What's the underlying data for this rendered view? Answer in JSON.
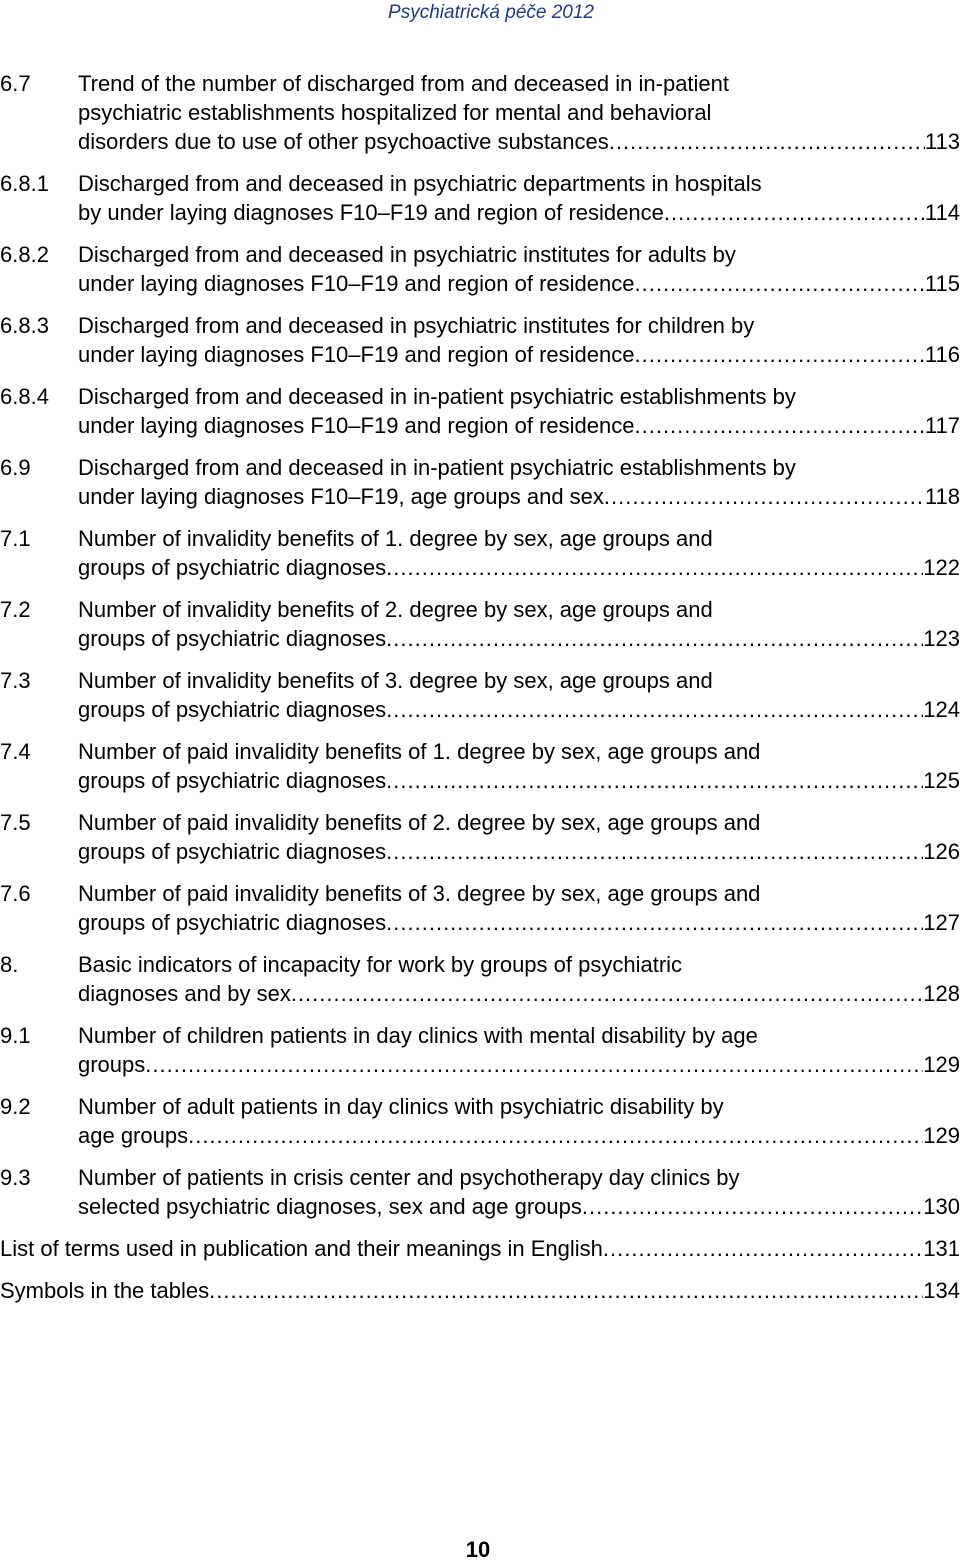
{
  "header": {
    "title": "Psychiatrická péče 2012"
  },
  "entries": [
    {
      "num": "6.7",
      "lines": [
        "Trend of the number of discharged from and deceased in in-patient",
        "psychiatric establishments hospitalized for mental and behavioral"
      ],
      "last": "disorders due to use of other psychoactive substances",
      "page": "113"
    },
    {
      "num": "6.8.1",
      "lines": [
        "Discharged from and deceased in psychiatric departments in hospitals"
      ],
      "last": "by under laying diagnoses F10–F19 and region of residence",
      "page": "114"
    },
    {
      "num": "6.8.2",
      "lines": [
        "Discharged from and deceased in psychiatric institutes for adults by"
      ],
      "last": "under laying diagnoses F10–F19 and region of residence",
      "page": "115"
    },
    {
      "num": "6.8.3",
      "lines": [
        "Discharged from and deceased in psychiatric institutes for children by"
      ],
      "last": "under laying diagnoses F10–F19 and region of residence",
      "page": "116"
    },
    {
      "num": "6.8.4",
      "lines": [
        "Discharged from and deceased in in-patient psychiatric establishments by"
      ],
      "last": "under laying diagnoses F10–F19 and region of residence",
      "page": "117"
    },
    {
      "num": "6.9",
      "lines": [
        "Discharged from and deceased in in-patient psychiatric establishments by"
      ],
      "last": "under laying diagnoses F10–F19, age groups and sex",
      "page": "118"
    },
    {
      "num": "7.1",
      "lines": [
        "Number of invalidity benefits of 1. degree by sex, age groups and"
      ],
      "last": "groups of psychiatric diagnoses",
      "page": "122"
    },
    {
      "num": "7.2",
      "lines": [
        "Number of invalidity benefits of 2. degree by sex, age groups and"
      ],
      "last": "groups of psychiatric diagnoses",
      "page": "123"
    },
    {
      "num": "7.3",
      "lines": [
        "Number of invalidity benefits of 3. degree by sex, age groups and"
      ],
      "last": "groups of psychiatric diagnoses",
      "page": "124"
    },
    {
      "num": "7.4",
      "lines": [
        "Number of paid invalidity benefits of 1. degree by sex, age groups and"
      ],
      "last": "groups of psychiatric diagnoses",
      "page": "125"
    },
    {
      "num": "7.5",
      "lines": [
        "Number of paid invalidity benefits of 2. degree by sex, age groups and"
      ],
      "last": "groups of psychiatric diagnoses",
      "page": "126"
    },
    {
      "num": "7.6",
      "lines": [
        "Number of paid invalidity benefits of 3. degree by sex, age groups and"
      ],
      "last": "groups of psychiatric diagnoses",
      "page": "127"
    },
    {
      "num": "8.",
      "lines": [
        "Basic indicators of incapacity for work by groups of psychiatric"
      ],
      "last": "diagnoses and by sex",
      "page": "128"
    },
    {
      "num": "9.1",
      "lines": [
        "Number of children patients in day clinics with mental disability by age"
      ],
      "last": "groups",
      "page": "129"
    },
    {
      "num": "9.2",
      "lines": [
        "Number of adult patients in day clinics with psychiatric disability by"
      ],
      "last": "age groups",
      "page": "129"
    },
    {
      "num": "9.3",
      "lines": [
        "Number of patients in crisis center and psychotherapy day clinics by"
      ],
      "last": "selected psychiatric diagnoses, sex and age groups",
      "page": "130"
    }
  ],
  "extra_entries": [
    {
      "last": "List of terms used in publication and their meanings in English",
      "page": "131"
    },
    {
      "last": "Symbols in the tables",
      "page": "134"
    }
  ],
  "page_number": "10"
}
